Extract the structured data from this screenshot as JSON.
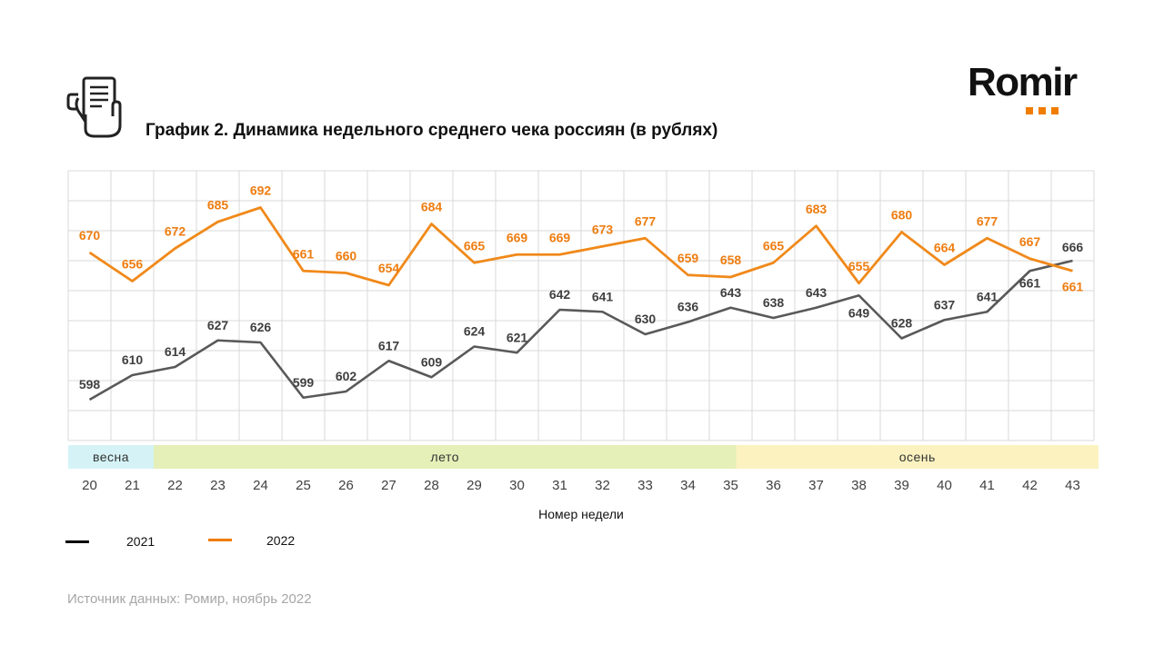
{
  "title": "График 2. Динамика недельного среднего чека россиян (в рублях)",
  "logo_text": "Romir",
  "icons": {
    "header": "receipt-hand-icon"
  },
  "colors": {
    "series_2021": "#595959",
    "series_2022": "#f0891a",
    "accent": "#f07c00"
  },
  "chart_data": {
    "type": "line",
    "title": "График 2. Динамика недельного среднего чека россиян (в рублях)",
    "xlabel": "Номер недели",
    "ylabel": "",
    "x": [
      "20",
      "21",
      "22",
      "23",
      "24",
      "25",
      "26",
      "27",
      "28",
      "29",
      "30",
      "31",
      "32",
      "33",
      "34",
      "35",
      "36",
      "37",
      "38",
      "39",
      "40",
      "41",
      "42",
      "43"
    ],
    "series": [
      {
        "name": "2021",
        "color": "#595959",
        "values": [
          598,
          610,
          614,
          627,
          626,
          599,
          602,
          617,
          609,
          624,
          621,
          642,
          641,
          630,
          636,
          643,
          638,
          643,
          649,
          628,
          637,
          641,
          661,
          666
        ]
      },
      {
        "name": "2022",
        "color": "#f0891a",
        "values": [
          670,
          656,
          672,
          685,
          692,
          661,
          660,
          654,
          684,
          665,
          669,
          669,
          673,
          677,
          659,
          658,
          665,
          683,
          655,
          680,
          664,
          677,
          667,
          661
        ]
      }
    ],
    "seasons": [
      {
        "label": "весна",
        "from": "20",
        "to": "21",
        "color": "#d5f3f6"
      },
      {
        "label": "лето",
        "from": "22",
        "to": "35",
        "color": "#e5efb8"
      },
      {
        "label": "осень",
        "from": "36",
        "to": "43",
        "color": "#fbf2c0"
      }
    ],
    "grid": true,
    "legend_position": "bottom-left"
  },
  "legend": {
    "label_2021": "2021",
    "label_2022": "2022"
  },
  "source": "Источник данных: Ромир, ноябрь 2022"
}
